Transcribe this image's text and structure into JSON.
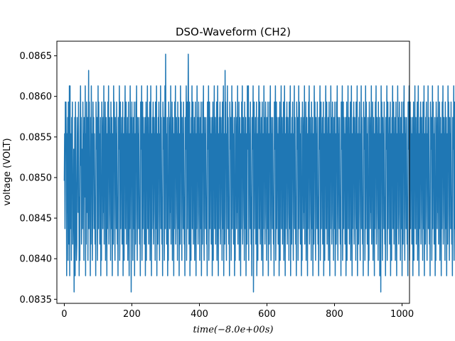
{
  "chart_data": {
    "type": "line",
    "title": "DSO-Waveform (CH2)",
    "xlabel": "time(−8.0e+00s)",
    "ylabel": "voltage (VOLT)",
    "xlim": [
      -22,
      1022
    ],
    "ylim": [
      0.08345,
      0.08668
    ],
    "x_ticks": [
      0,
      200,
      400,
      600,
      800,
      1000
    ],
    "y_ticks": [
      0.0835,
      0.084,
      0.0845,
      0.085,
      0.0855,
      0.086,
      0.0865
    ],
    "y_tick_labels": [
      "0.0835",
      "0.0840",
      "0.0845",
      "0.0850",
      "0.0855",
      "0.0860",
      "0.0865"
    ],
    "grid": false,
    "series": [
      {
        "color": "#1f77b4",
        "x_start": 0,
        "x_step": 1,
        "levels": [
          0.08359,
          0.08379,
          0.08398,
          0.08418,
          0.08437,
          0.08457,
          0.08476,
          0.08496,
          0.08515,
          0.08535,
          0.08554,
          0.08574,
          0.08593,
          0.08613,
          0.08632,
          0.08652
        ],
        "level_codes": "7a4c9381a5b2c6391d4a82b7c3549a6b1c8423b9a5c7162ad8b3594c8a2b76d1a3c58b29a4c671b3d9a25c8b4a7361ca9b25d4c8a37b162ca94b5d3a8c27b61a4c9d35b8a2c74b16a3d9c52b8a4c7361ba9d25c4a8b37c16a2b9d45c3a8b27c61a4d9b35c8a2b74c16a3c9d52b8a4b7361ca9d25c4b8a37b16c2a9d45b3a8c27d61a4b9c35b8a2c74d16a3b9c52a8d4b7361ca9b25d4c8a37b162ca94b5d3a8c27b61a4c9d35b8a2c74b16a3d9c52b8a4c7361ba9d25c4a8b37c16a2b9d45c3a8b27c61a4d9b35c8a2b74c16a3c9d52b8a4b7361ca9d25c4b8a37b16c2a9d45b3a8c27d61a4b9c35b8a2c74d16a3b9c52a8d4b7361ca9b25d4c8a37b162ca94b5d3a8c27b61a4c9d35b8a2c74b16a3d9c52b8a4c7361ba9d25c4a8b37c16a2b9d45c3a8b27c61a4d9b35c8a2b74c16a3c9d52b8a4b7361ca9d25c4b8a37b16c2a9d45b3a8c27d61a4b9c35b8a2c74d16a3b9c52a8d4b7361ca9b25d4c8a37b162ca94b5d3a8c27b61a4c9d35b8a2c74b16a3d9c52b8a4c7361ba9d25c4a8b37c16a2b9d45c3a8b27c61a4d9b35c8a2b74c16a3c9d52b8a4b7361ca9d25c4b8a37b16c2a9d45b3a8c27d61a4b9c35b8a2c74d16a3b9c52a8d4b7361ca9b25d4c8a37b162ca94b5d3a8c27b61a4c9d35b8a2c74b16a3d9c52b8a4c7361ba9d25c4a8b37c16a2b9d45c3a8b27c61a4d9b35c8a2b74c16a3c9d52b8a4b7361ca9d25c4b8a37b16c2a9d45b3a8c27d61a4b9c35b8a2c74d16a3b9c52a8d4b7361ca9b25d4c8a37b162ca94b5d3a8c27b61a4c9d35b8a2c74b16a3d9c52b8a4c7361ba9d25c4a8b37c16a2b9d45c3a8b27c61a4d9b35c8a2b74c16a3c9d52b8a4b7361ca9d25c4b8a37b16c2a9d45b3a8c27d61a4b9c35b8a2c74d16a3b9c52a8d4b7361ca9b25d4c8a37b162ca94b5d3a8c27b61a4c9d35b8a2c74b16a3d9c52b8a4c7361ba9d25c4a8b37c16a2b9d45c3a8b27c61a4d9b35c8a2b74c16a3c9d52b8a4b7361ca9d25c4b8a37b16c2a9d45b3a8c27d61a4b9c35b8a2c74d16a3b9c52a8d4b7361ca9b25d4c8a37b162ca94b5d3a8c27b61a4c9d35b8a2c74b16a3d9c52b8a4c7361ba9d25c4a8b37c16a2b9d45c3a8b27c61a4d9b35c8a2b74c16a3c9d52b8a4b7361ca9d25c4b8a37b16c2a9d45b3a8c27d61a4b9c35b8a2c74d16a3b9c52a8d4b7361ca9b25d4c8a37b162ca94b5d3a8c27b61a4c9d35b8a2c74",
        "spikes": [
          {
            "x": 5,
            "y": 0.08593
          },
          {
            "x": 15,
            "y": 0.08613
          },
          {
            "x": 72,
            "y": 0.08632
          },
          {
            "x": 300,
            "y": 0.08652
          },
          {
            "x": 367,
            "y": 0.08652
          },
          {
            "x": 476,
            "y": 0.08632
          },
          {
            "x": 545,
            "y": 0.08613
          },
          {
            "x": 29,
            "y": 0.08359
          },
          {
            "x": 198,
            "y": 0.08359
          },
          {
            "x": 560,
            "y": 0.08359
          },
          {
            "x": 937,
            "y": 0.08359
          }
        ]
      }
    ]
  }
}
